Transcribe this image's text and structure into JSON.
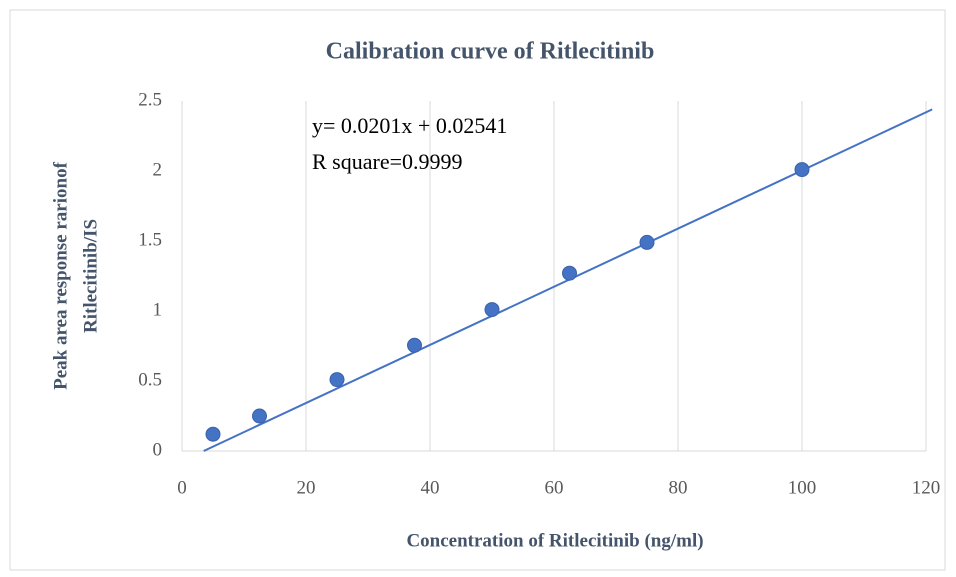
{
  "chart_data": {
    "type": "scatter",
    "title": "Calibration curve of Ritlecitinib",
    "x_label": "Concentration of Ritlecitinib (ng/ml)",
    "y_label": [
      "Peak area response rarionof",
      "Ritlecitinib/IS"
    ],
    "annotations": [
      "y= 0.0201x + 0.02541",
      "R square=0.9999"
    ],
    "series": [
      {
        "color": "#4472c4",
        "x": [
          5,
          12.5,
          25,
          37.5,
          50,
          62.5,
          75,
          100
        ],
        "values": [
          0.12,
          0.25,
          0.51,
          0.755,
          1.01,
          1.27,
          1.49,
          2.01
        ]
      }
    ],
    "trendline": {
      "color": "#4472c4",
      "x": [
        3.5,
        121
      ],
      "values": [
        0,
        2.44
      ]
    },
    "xlim": [
      0,
      120
    ],
    "xticks": [
      0,
      20,
      40,
      60,
      80,
      100,
      120
    ],
    "ylim": [
      0,
      2.5
    ],
    "yticks": [
      0,
      0.5,
      1,
      1.5,
      2,
      2.5
    ],
    "grid": "x"
  }
}
